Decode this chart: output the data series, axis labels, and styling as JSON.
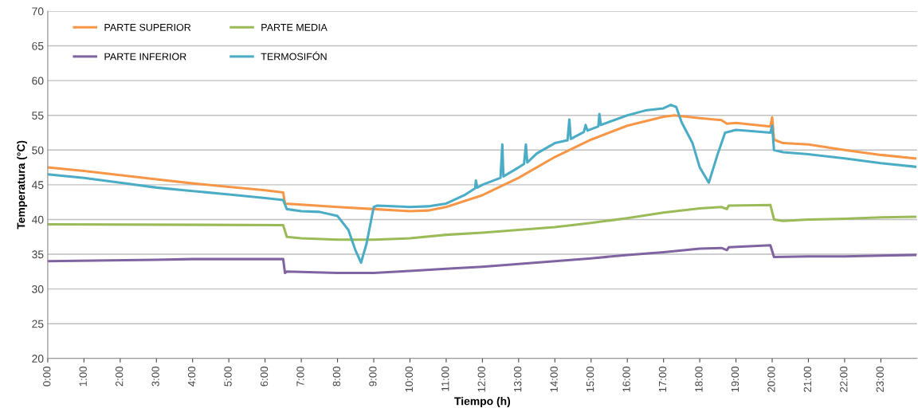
{
  "chart_data": {
    "type": "line",
    "xlabel": "Tiempo (h)",
    "ylabel": "Temperatura (°C)",
    "xlim": [
      0,
      24
    ],
    "ylim": [
      20,
      70
    ],
    "yticks": [
      20,
      25,
      30,
      35,
      40,
      45,
      50,
      55,
      60,
      65,
      70
    ],
    "xticks": [
      {
        "value": 0,
        "label": "0:00"
      },
      {
        "value": 1,
        "label": "1:00"
      },
      {
        "value": 2,
        "label": "2:00"
      },
      {
        "value": 3,
        "label": "3:00"
      },
      {
        "value": 4,
        "label": "4:00"
      },
      {
        "value": 5,
        "label": "5:00"
      },
      {
        "value": 6,
        "label": "6:00"
      },
      {
        "value": 7,
        "label": "7:00"
      },
      {
        "value": 8,
        "label": "8:00"
      },
      {
        "value": 9,
        "label": "9:00"
      },
      {
        "value": 10,
        "label": "10:00"
      },
      {
        "value": 11,
        "label": "11:00"
      },
      {
        "value": 12,
        "label": "12:00"
      },
      {
        "value": 13,
        "label": "13:00"
      },
      {
        "value": 14,
        "label": "14:00"
      },
      {
        "value": 15,
        "label": "15:00"
      },
      {
        "value": 16,
        "label": "16:00"
      },
      {
        "value": 17,
        "label": "17:00"
      },
      {
        "value": 18,
        "label": "18:00"
      },
      {
        "value": 19,
        "label": "19:00"
      },
      {
        "value": 20,
        "label": "20:00"
      },
      {
        "value": 21,
        "label": "21:00"
      },
      {
        "value": 22,
        "label": "22:00"
      },
      {
        "value": 23,
        "label": "23:00"
      }
    ],
    "grid": "y",
    "legend": "top left",
    "marker": "none",
    "line_style": "solid",
    "series": [
      {
        "name": "PARTE SUPERIOR",
        "color": "#f79646",
        "x": [
          0,
          1,
          2,
          3,
          4,
          5,
          6,
          6.5,
          6.55,
          8,
          9,
          10,
          10.5,
          11,
          12,
          13,
          14,
          15,
          16,
          17,
          17.3,
          18,
          18.6,
          18.75,
          19,
          19.95,
          20.0,
          20.05,
          20.3,
          21,
          22,
          23,
          23.95
        ],
        "values": [
          47.5,
          47.0,
          46.4,
          45.8,
          45.2,
          44.7,
          44.2,
          43.9,
          42.3,
          41.8,
          41.5,
          41.2,
          41.3,
          41.8,
          43.5,
          46.0,
          49.0,
          51.5,
          53.5,
          54.8,
          55.0,
          54.6,
          54.3,
          53.8,
          53.9,
          53.4,
          54.7,
          51.5,
          51.0,
          50.8,
          50.0,
          49.3,
          48.8
        ]
      },
      {
        "name": "PARTE MEDIA",
        "color": "#9bbb59",
        "x": [
          0,
          6.5,
          6.6,
          7,
          8,
          9,
          10,
          11,
          12,
          13,
          14,
          15,
          16,
          17,
          18,
          18.6,
          18.75,
          18.8,
          19.95,
          20.05,
          20.3,
          21,
          22,
          23,
          23.95
        ],
        "values": [
          39.3,
          39.2,
          37.5,
          37.3,
          37.1,
          37.1,
          37.3,
          37.8,
          38.1,
          38.5,
          38.9,
          39.5,
          40.2,
          41.0,
          41.6,
          41.8,
          41.5,
          42.0,
          42.1,
          40.0,
          39.8,
          40.0,
          40.1,
          40.3,
          40.4
        ]
      },
      {
        "name": "PARTE INFERIOR",
        "color": "#8064a2",
        "x": [
          0,
          3,
          4,
          6.5,
          6.55,
          6.6,
          8,
          9,
          10,
          11,
          12,
          13,
          14,
          15,
          16,
          17,
          18,
          18.6,
          18.75,
          18.8,
          19.95,
          20.05,
          21,
          22,
          23,
          23.95
        ],
        "values": [
          34.0,
          34.2,
          34.3,
          34.3,
          32.3,
          32.5,
          32.3,
          32.3,
          32.6,
          32.9,
          33.2,
          33.6,
          34.0,
          34.4,
          34.9,
          35.3,
          35.8,
          35.9,
          35.6,
          36.0,
          36.3,
          34.6,
          34.7,
          34.7,
          34.8,
          34.9
        ]
      },
      {
        "name": "TERMOSIFÓN",
        "color": "#4bacc6",
        "x": [
          0,
          1,
          2,
          3,
          4,
          5,
          6,
          6.5,
          6.6,
          7,
          7.5,
          8,
          8.3,
          8.5,
          8.65,
          8.8,
          9.0,
          9.1,
          10,
          10.5,
          11,
          11.5,
          11.8,
          11.82,
          11.86,
          12,
          12.5,
          12.55,
          12.58,
          13,
          13.15,
          13.2,
          13.24,
          13.5,
          14,
          14.35,
          14.4,
          14.44,
          14.8,
          14.85,
          14.9,
          15.2,
          15.23,
          15.27,
          16,
          16.5,
          17,
          17.2,
          17.35,
          17.5,
          17.8,
          18.0,
          18.25,
          18.5,
          18.7,
          19,
          19.5,
          19.95,
          20.0,
          20.05,
          20.3,
          21,
          22,
          23,
          23.95
        ],
        "values": [
          46.5,
          46.0,
          45.3,
          44.6,
          44.1,
          43.6,
          43.1,
          42.8,
          41.5,
          41.2,
          41.1,
          40.5,
          38.5,
          35.5,
          33.8,
          36.5,
          41.8,
          42.0,
          41.8,
          41.9,
          42.3,
          43.5,
          44.5,
          45.6,
          44.6,
          45.0,
          46.0,
          50.8,
          46.2,
          47.5,
          48.0,
          50.8,
          48.2,
          49.5,
          51.0,
          51.4,
          54.4,
          51.6,
          52.6,
          53.6,
          52.8,
          53.4,
          55.2,
          53.6,
          55.0,
          55.7,
          56.0,
          56.5,
          56.2,
          54.0,
          51.0,
          47.5,
          45.3,
          49.5,
          52.5,
          52.9,
          52.7,
          52.5,
          53.5,
          50.0,
          49.7,
          49.4,
          48.8,
          48.1,
          47.6
        ]
      }
    ]
  }
}
